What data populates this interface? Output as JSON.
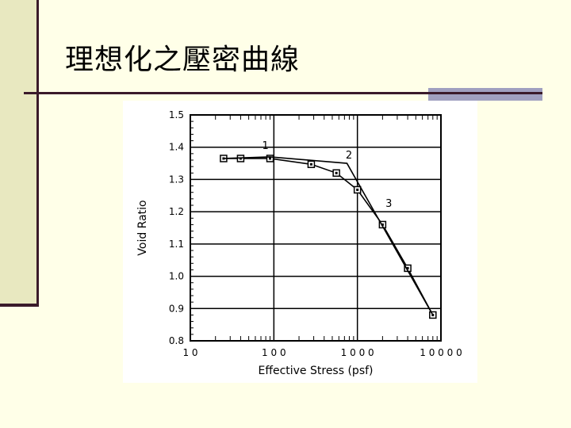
{
  "slide": {
    "title": "理想化之壓密曲線"
  },
  "chart_data": {
    "type": "line",
    "title": "",
    "xlabel": "Effective  Stress  (psf)",
    "ylabel": "Void Ratio",
    "x_scale": "log",
    "xlim": [
      10,
      10000
    ],
    "ylim": [
      0.8,
      1.5
    ],
    "grid": true,
    "x_ticks": [
      10,
      100,
      1000,
      10000
    ],
    "x_tick_labels": [
      "1 0",
      "1 0 0",
      "1 0 0 0",
      "1 0 0 0 0"
    ],
    "y_ticks": [
      0.8,
      0.9,
      1.0,
      1.1,
      1.2,
      1.3,
      1.4,
      1.5
    ],
    "y_tick_labels": [
      "0.8",
      "0.9",
      "1.0",
      "1.1",
      "1.2",
      "1.3",
      "1.4",
      "1.5"
    ],
    "series": [
      {
        "marker": "square",
        "x": [
          25,
          40,
          90,
          280,
          560,
          1000,
          2000,
          4000,
          8000
        ],
        "y": [
          1.365,
          1.365,
          1.365,
          1.347,
          1.32,
          1.268,
          1.16,
          1.025,
          0.88
        ]
      },
      {
        "marker": "none",
        "x": [
          25,
          90,
          750,
          8000
        ],
        "y": [
          1.365,
          1.37,
          1.35,
          0.88
        ]
      }
    ],
    "annotations": [
      {
        "text": "1",
        "x": 90,
        "y": 1.38
      },
      {
        "text": "2",
        "x": 900,
        "y": 1.35
      },
      {
        "text": "3",
        "x": 2700,
        "y": 1.2
      }
    ]
  }
}
